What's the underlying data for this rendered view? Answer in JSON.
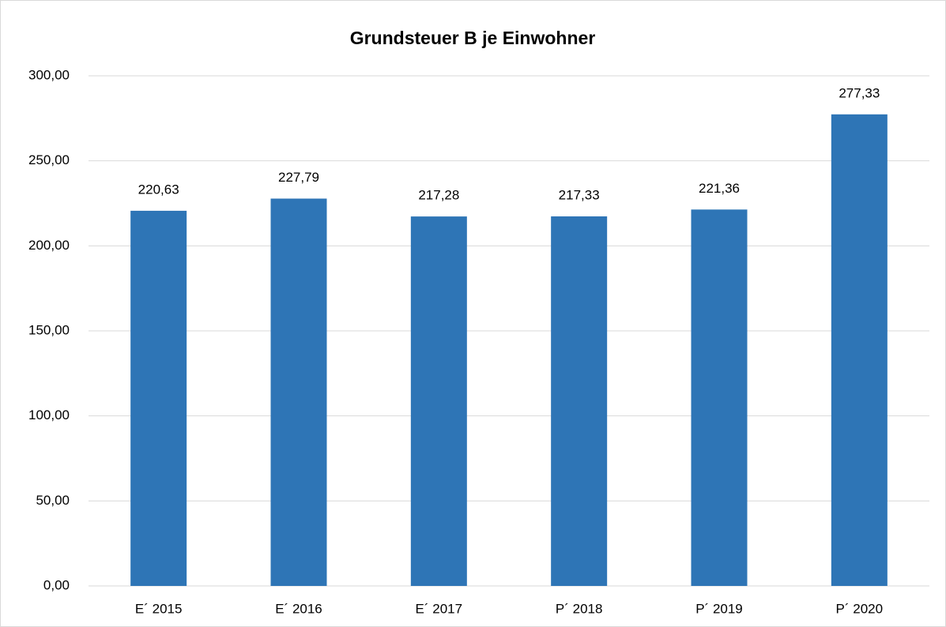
{
  "chart_data": {
    "type": "bar",
    "title": "Grundsteuer B je Einwohner",
    "categories": [
      "E´ 2015",
      "E´ 2016",
      "E´ 2017",
      "P´ 2018",
      "P´ 2019",
      "P´ 2020"
    ],
    "values": [
      220.63,
      227.79,
      217.28,
      217.33,
      221.36,
      277.33
    ],
    "value_labels": [
      "220,63",
      "227,79",
      "217,28",
      "217,33",
      "221,36",
      "277,33"
    ],
    "color": "#2e75b6",
    "ylim": [
      0,
      300
    ],
    "yticks": [
      {
        "value": 0,
        "label": "0,00"
      },
      {
        "value": 50,
        "label": "50,00"
      },
      {
        "value": 100,
        "label": "100,00"
      },
      {
        "value": 150,
        "label": "150,00"
      },
      {
        "value": 200,
        "label": "200,00"
      },
      {
        "value": 250,
        "label": "250,00"
      },
      {
        "value": 300,
        "label": "300,00"
      }
    ],
    "grid": true
  }
}
